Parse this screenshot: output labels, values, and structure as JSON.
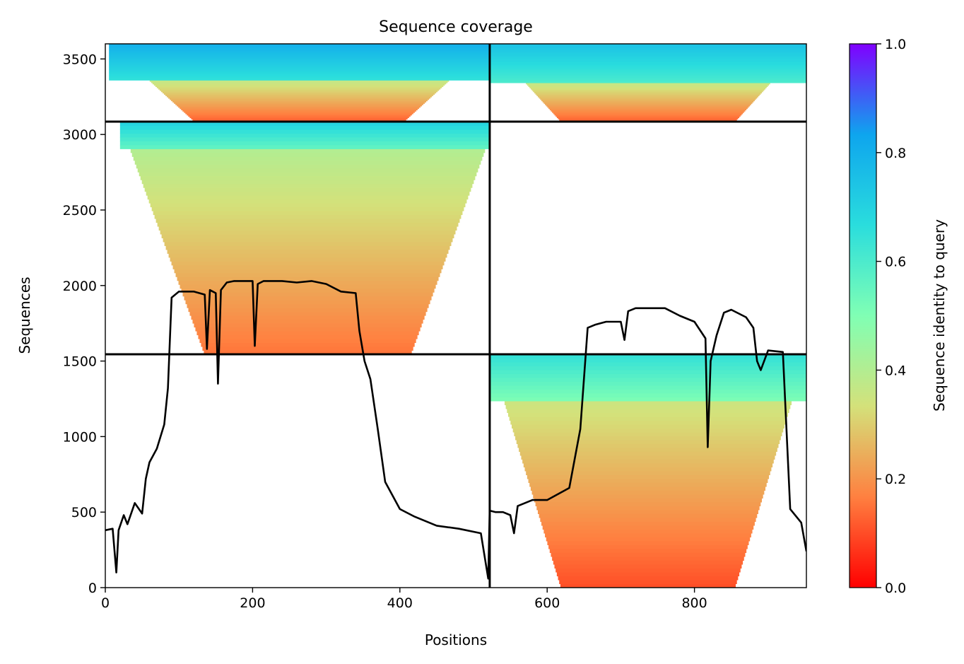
{
  "chart_data": {
    "type": "heatmap",
    "title": "Sequence coverage",
    "xlabel": "Positions",
    "ylabel": "Sequences",
    "xlim": [
      0,
      952
    ],
    "ylim": [
      0,
      3600
    ],
    "xticks": [
      0,
      200,
      400,
      600,
      800
    ],
    "yticks": [
      0,
      500,
      1000,
      1500,
      2000,
      2500,
      3000,
      3500
    ],
    "grid": false,
    "colorbar": {
      "label": "Sequence identity to query",
      "range": [
        0,
        1
      ],
      "ticks": [
        0.0,
        0.2,
        0.4,
        0.6,
        0.8,
        1.0
      ],
      "colormap": "rainbow_r",
      "colors": [
        "#ff0000",
        "#ff8040",
        "#d4e17a",
        "#80ffb4",
        "#2adddd",
        "#0ea5ee",
        "#8000ff"
      ]
    },
    "dividers": {
      "x": [
        522
      ],
      "y": [
        1545,
        3085
      ]
    },
    "blocks": [
      {
        "x": [
          0,
          522
        ],
        "y": [
          3085,
          3600
        ],
        "row_range": [
          3085,
          3600
        ],
        "coverage_x": [
          5,
          522
        ],
        "identity_top": 0.8,
        "identity_bottom": 0.12,
        "transition_y": 3360
      },
      {
        "x": [
          522,
          952
        ],
        "y": [
          3085,
          3600
        ],
        "row_range": [
          3085,
          3600
        ],
        "coverage_x": [
          522,
          952
        ],
        "identity_top": 0.75,
        "identity_bottom": 0.12,
        "transition_y": 3345
      },
      {
        "x": [
          0,
          522
        ],
        "y": [
          1545,
          3085
        ],
        "row_range": [
          1545,
          3085
        ],
        "coverage_x": [
          20,
          530
        ],
        "identity_top": 0.7,
        "identity_bottom": 0.15,
        "transition_y": 2900
      },
      {
        "x": [
          522,
          952
        ],
        "y": [
          0,
          1545
        ],
        "row_range": [
          0,
          1545
        ],
        "coverage_x": [
          522,
          952
        ],
        "identity_top": 0.65,
        "identity_bottom": 0.1,
        "transition_y": 1230
      }
    ],
    "series": [
      {
        "type": "line",
        "color": "#000000",
        "x": [
          0,
          10,
          15,
          18,
          25,
          30,
          40,
          50,
          55,
          60,
          70,
          80,
          85,
          90,
          100,
          120,
          135,
          138,
          142,
          150,
          153,
          157,
          165,
          175,
          200,
          203,
          207,
          215,
          230,
          240,
          260,
          280,
          300,
          320,
          340,
          345,
          352,
          360,
          370,
          380,
          400,
          420,
          450,
          480,
          510,
          520,
          522,
          530,
          540,
          550,
          555,
          560,
          580,
          600,
          630,
          645,
          655,
          665,
          680,
          700,
          705,
          710,
          720,
          740,
          760,
          780,
          800,
          815,
          818,
          822,
          830,
          840,
          850,
          870,
          880,
          885,
          890,
          900,
          920,
          930,
          945,
          952
        ],
        "y": [
          380,
          390,
          100,
          380,
          480,
          420,
          560,
          490,
          720,
          830,
          920,
          1080,
          1320,
          1920,
          1960,
          1960,
          1940,
          1580,
          1970,
          1950,
          1350,
          1970,
          2020,
          2030,
          2030,
          1600,
          2010,
          2030,
          2030,
          2030,
          2020,
          2030,
          2010,
          1960,
          1950,
          1700,
          1500,
          1380,
          1050,
          700,
          520,
          470,
          410,
          390,
          360,
          60,
          510,
          500,
          500,
          480,
          360,
          540,
          580,
          580,
          660,
          1050,
          1720,
          1740,
          1760,
          1760,
          1640,
          1830,
          1850,
          1850,
          1850,
          1800,
          1760,
          1650,
          930,
          1500,
          1670,
          1820,
          1840,
          1790,
          1720,
          1500,
          1440,
          1570,
          1560,
          520,
          430,
          240
        ]
      }
    ]
  }
}
